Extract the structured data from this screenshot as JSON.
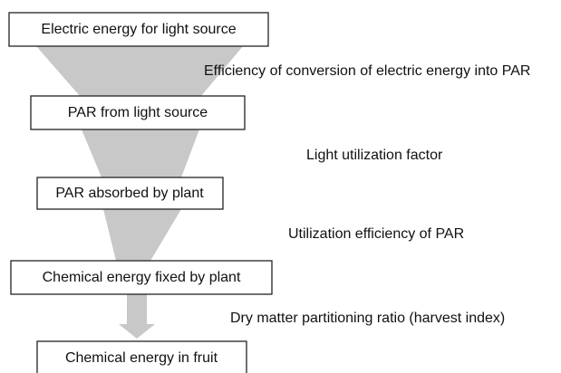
{
  "nodes": [
    {
      "label": "Electric energy for light source"
    },
    {
      "label": "PAR from light source"
    },
    {
      "label": "PAR absorbed by plant"
    },
    {
      "label": "Chemical energy fixed by plant"
    },
    {
      "label": "Chemical energy in fruit"
    }
  ],
  "edges": [
    {
      "label": "Efficiency of conversion of electric energy into PAR"
    },
    {
      "label": "Light utilization factor"
    },
    {
      "label": "Utilization efficiency of PAR"
    },
    {
      "label": "Dry matter partitioning ratio (harvest index)"
    }
  ]
}
